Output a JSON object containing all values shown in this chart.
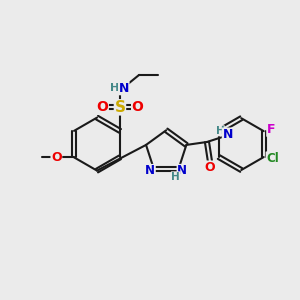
{
  "bg_color": "#ebebeb",
  "bond_color": "#1a1a1a",
  "atom_colors": {
    "N": "#0000cc",
    "O": "#ee0000",
    "S": "#ccaa00",
    "H": "#448888",
    "Cl": "#228822",
    "F": "#cc00cc",
    "C": "#1a1a1a"
  },
  "figsize": [
    3.0,
    3.0
  ],
  "dpi": 100
}
